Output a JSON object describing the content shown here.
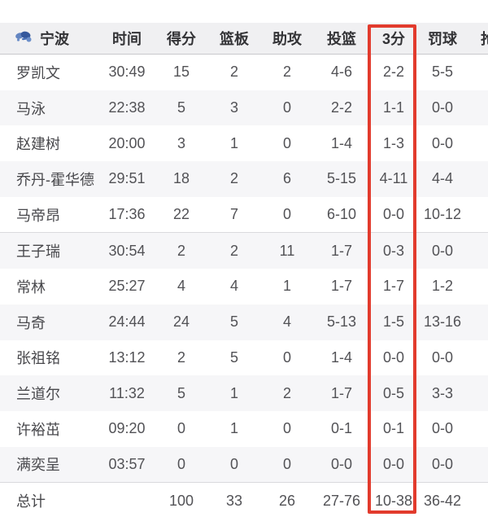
{
  "table": {
    "team_label": "宁波",
    "columns": [
      {
        "key": "name",
        "label": "宁波"
      },
      {
        "key": "time",
        "label": "时间"
      },
      {
        "key": "points",
        "label": "得分"
      },
      {
        "key": "rebounds",
        "label": "篮板"
      },
      {
        "key": "assists",
        "label": "助攻"
      },
      {
        "key": "fg",
        "label": "投篮"
      },
      {
        "key": "three",
        "label": "3分"
      },
      {
        "key": "ft",
        "label": "罚球"
      },
      {
        "key": "steals",
        "label": "抢断"
      }
    ],
    "highlight": {
      "column": "3分",
      "color": "#e23b2d"
    },
    "logo_color": "#4a72b8",
    "rows": [
      {
        "name": "罗凯文",
        "time": "30:49",
        "points": "15",
        "rebounds": "2",
        "assists": "2",
        "fg": "4-6",
        "three": "2-2",
        "ft": "5-5"
      },
      {
        "name": "马泳",
        "time": "22:38",
        "points": "5",
        "rebounds": "3",
        "assists": "0",
        "fg": "2-2",
        "three": "1-1",
        "ft": "0-0"
      },
      {
        "name": "赵建树",
        "time": "20:00",
        "points": "3",
        "rebounds": "1",
        "assists": "0",
        "fg": "1-4",
        "three": "1-3",
        "ft": "0-0"
      },
      {
        "name": "乔丹-霍华德",
        "time": "29:51",
        "points": "18",
        "rebounds": "2",
        "assists": "6",
        "fg": "5-15",
        "three": "4-11",
        "ft": "4-4"
      },
      {
        "name": "马帝昂",
        "time": "17:36",
        "points": "22",
        "rebounds": "7",
        "assists": "0",
        "fg": "6-10",
        "three": "0-0",
        "ft": "10-12"
      },
      {
        "name": "王子瑞",
        "time": "30:54",
        "points": "2",
        "rebounds": "2",
        "assists": "11",
        "fg": "1-7",
        "three": "0-3",
        "ft": "0-0"
      },
      {
        "name": "常林",
        "time": "25:27",
        "points": "4",
        "rebounds": "4",
        "assists": "1",
        "fg": "1-7",
        "three": "1-7",
        "ft": "1-2"
      },
      {
        "name": "马奇",
        "time": "24:44",
        "points": "24",
        "rebounds": "5",
        "assists": "4",
        "fg": "5-13",
        "three": "1-5",
        "ft": "13-16"
      },
      {
        "name": "张祖铭",
        "time": "13:12",
        "points": "2",
        "rebounds": "5",
        "assists": "0",
        "fg": "1-4",
        "three": "0-0",
        "ft": "0-0"
      },
      {
        "name": "兰道尔",
        "time": "11:32",
        "points": "5",
        "rebounds": "1",
        "assists": "2",
        "fg": "1-7",
        "three": "0-5",
        "ft": "3-3"
      },
      {
        "name": "许裕茁",
        "time": "09:20",
        "points": "0",
        "rebounds": "1",
        "assists": "0",
        "fg": "0-1",
        "three": "0-1",
        "ft": "0-0"
      },
      {
        "name": "满奕呈",
        "time": "03:57",
        "points": "0",
        "rebounds": "0",
        "assists": "0",
        "fg": "0-0",
        "three": "0-0",
        "ft": "0-0"
      },
      {
        "name": "总计",
        "time": "",
        "points": "100",
        "rebounds": "33",
        "assists": "26",
        "fg": "27-76",
        "three": "10-38",
        "ft": "36-42",
        "is_total": true
      }
    ]
  }
}
